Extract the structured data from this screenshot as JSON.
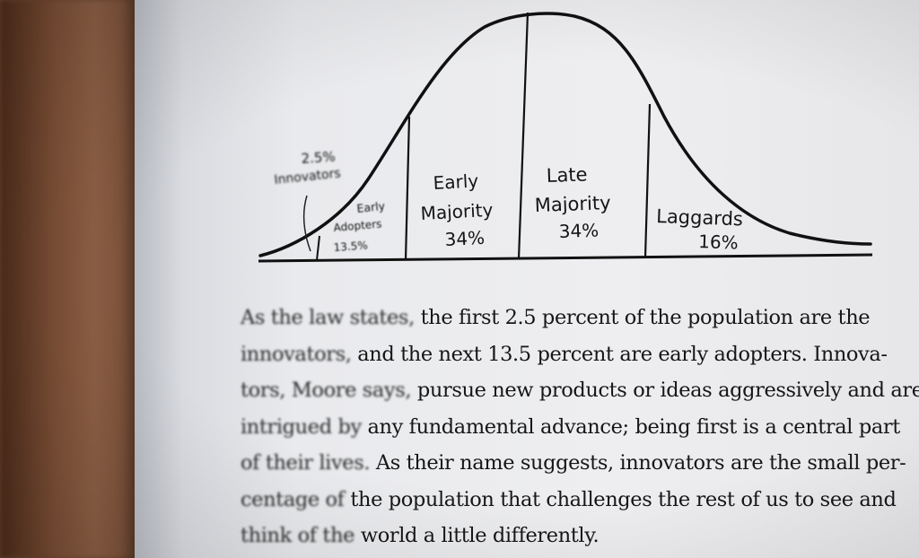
{
  "chart": {
    "segments": [
      {
        "percent_label": "2.5%",
        "name_label": "Innovators"
      },
      {
        "name_label": "Early Adopters",
        "name_line1": "Early",
        "name_line2": "Adopters",
        "percent_label": "13.5%"
      },
      {
        "name_line1": "Early",
        "name_line2": "Majority",
        "percent_label": "34%"
      },
      {
        "name_line1": "Late",
        "name_line2": "Majority",
        "percent_label": "34%"
      },
      {
        "name_line1": "Laggards",
        "percent_label": "16%"
      }
    ]
  },
  "paragraph": {
    "lines": [
      {
        "lead": "As the law states,",
        "rest": " the first 2.5 percent of the population are the"
      },
      {
        "lead": "innovators,",
        "rest": " and the next 13.5 percent are early adopters. Innova-"
      },
      {
        "lead": "tors, Moore says,",
        "rest": " pursue new products or ideas aggressively and are"
      },
      {
        "lead": "intrigued by",
        "rest": " any fundamental advance; being first is a central part"
      },
      {
        "lead": "of their lives.",
        "rest": " As their name suggests, innovators are the small per-"
      },
      {
        "lead": "centage of",
        "rest": " the population that challenges the rest of us to see and"
      },
      {
        "lead": "think of the",
        "rest": " world a little differently."
      }
    ]
  }
}
